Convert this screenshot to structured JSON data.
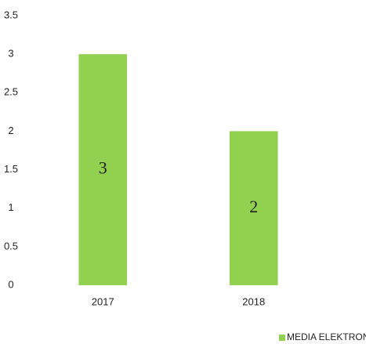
{
  "chart_data": {
    "type": "bar",
    "categories": [
      "2017",
      "2018"
    ],
    "series": [
      {
        "name": "MEDIA ELEKTRONIK",
        "color": "#92d050",
        "values": [
          3,
          2
        ]
      }
    ],
    "ylim": [
      0,
      3.5
    ],
    "yticks": [
      0,
      0.5,
      1,
      1.5,
      2,
      2.5,
      3,
      3.5
    ],
    "grid": false,
    "legend": "bottom-right"
  }
}
